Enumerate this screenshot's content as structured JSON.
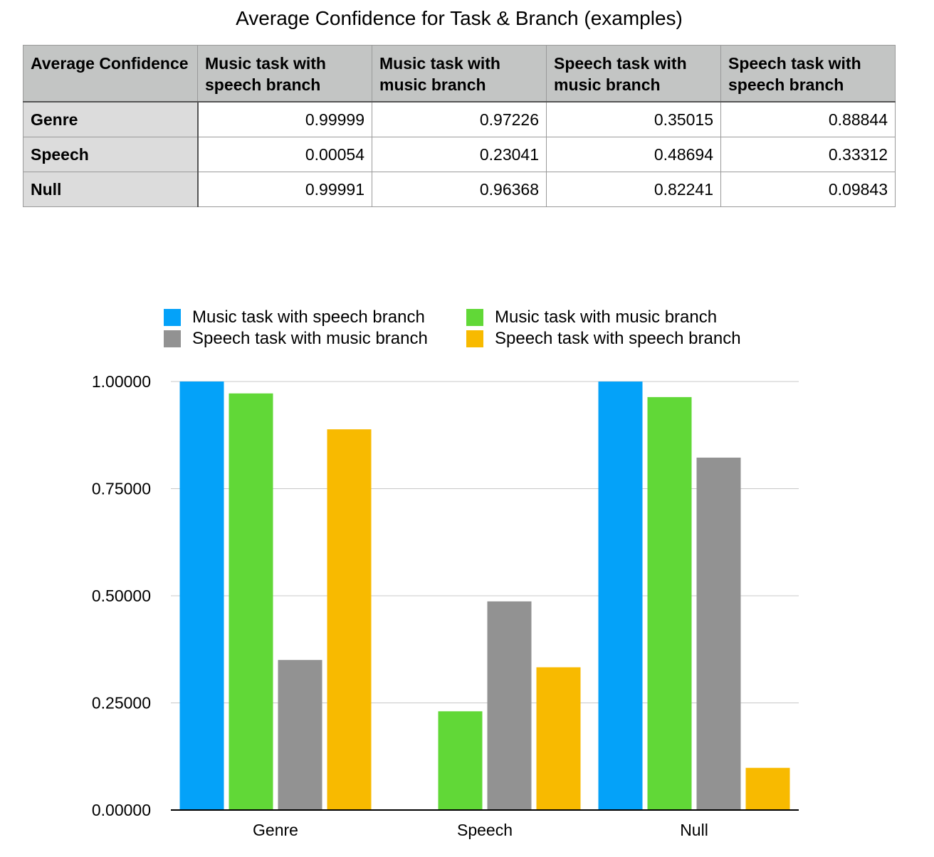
{
  "title": "Average Confidence for Task & Branch (examples)",
  "table": {
    "corner": "Average Confidence",
    "columns": [
      "Music task with speech branch",
      "Music task with music branch",
      "Speech task with music branch",
      "Speech task with speech branch"
    ],
    "rows": [
      {
        "label": "Genre",
        "cells": [
          "0.99999",
          "0.97226",
          "0.35015",
          "0.88844"
        ]
      },
      {
        "label": "Speech",
        "cells": [
          "0.00054",
          "0.23041",
          "0.48694",
          "0.33312"
        ]
      },
      {
        "label": "Null",
        "cells": [
          "0.99991",
          "0.96368",
          "0.82241",
          "0.09843"
        ]
      }
    ]
  },
  "chart_data": {
    "type": "bar",
    "categories": [
      "Genre",
      "Speech",
      "Null"
    ],
    "series": [
      {
        "name": "Music task with speech branch",
        "values": [
          0.99999,
          0.00054,
          0.99991
        ],
        "color": "#04a2f9"
      },
      {
        "name": "Music task with music branch",
        "values": [
          0.97226,
          0.23041,
          0.96368
        ],
        "color": "#61d837"
      },
      {
        "name": "Speech task with music branch",
        "values": [
          0.35015,
          0.48694,
          0.82241
        ],
        "color": "#929292"
      },
      {
        "name": "Speech task with speech branch",
        "values": [
          0.88844,
          0.33312,
          0.09843
        ],
        "color": "#f8ba00"
      }
    ],
    "yticks": [
      "0.00000",
      "0.25000",
      "0.50000",
      "0.75000",
      "1.00000"
    ],
    "ylim": [
      0,
      1
    ],
    "grid": true,
    "legend": "top"
  }
}
